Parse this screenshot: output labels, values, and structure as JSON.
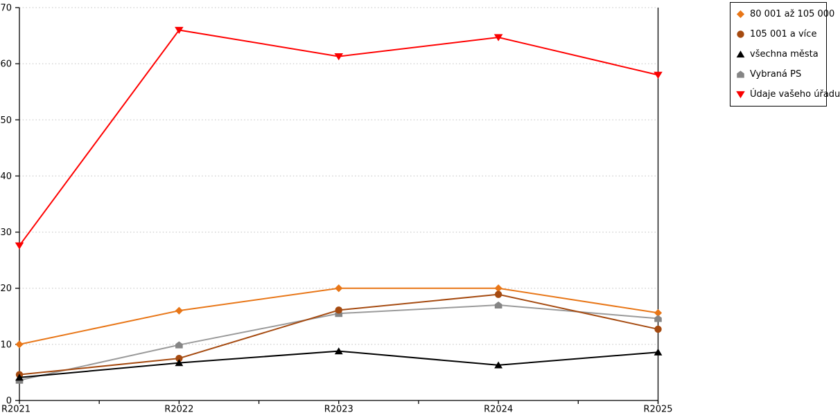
{
  "chart_data": {
    "type": "line",
    "title": "",
    "xlabel": "",
    "ylabel": "",
    "categories": [
      "R2021",
      "R2022",
      "R2023",
      "R2024",
      "R2025"
    ],
    "series": [
      {
        "name": "80 001 až 105 000",
        "marker": "diamond",
        "color": "#E87617",
        "marker_color": "#E87617",
        "z": 1,
        "values": [
          10,
          16,
          20,
          20,
          15.6
        ]
      },
      {
        "name": "105 001 a více",
        "marker": "circle",
        "color": "#A54A10",
        "marker_color": "#A54A10",
        "z": 3,
        "values": [
          4.6,
          7.5,
          16.1,
          18.9,
          12.7
        ]
      },
      {
        "name": "všechna města",
        "marker": "triangle-up",
        "color": "#000000",
        "marker_color": "#000000",
        "z": 4,
        "values": [
          4.1,
          6.7,
          8.8,
          6.3,
          8.6
        ]
      },
      {
        "name": "Vybraná PS",
        "marker": "pentagon",
        "color": "#9A9A9A",
        "marker_color": "#858585",
        "z": 2,
        "values": [
          3.6,
          9.9,
          15.5,
          17.0,
          14.6
        ]
      },
      {
        "name": "Údaje vašeho úřadu",
        "marker": "triangle-down",
        "color": "#FF0000",
        "marker_color": "#FA0000",
        "z": 5,
        "values": [
          27.6,
          66.0,
          61.3,
          64.7,
          58.0
        ]
      }
    ],
    "ylim": [
      0,
      70
    ],
    "ytick_step": 10,
    "yticks": [
      0,
      10,
      20,
      30,
      40,
      50,
      60,
      70
    ],
    "grid": "horizontal-dotted",
    "grid_color": "#BFBFBF",
    "axis_color": "#000000",
    "legend_position": "top-right-outside"
  }
}
